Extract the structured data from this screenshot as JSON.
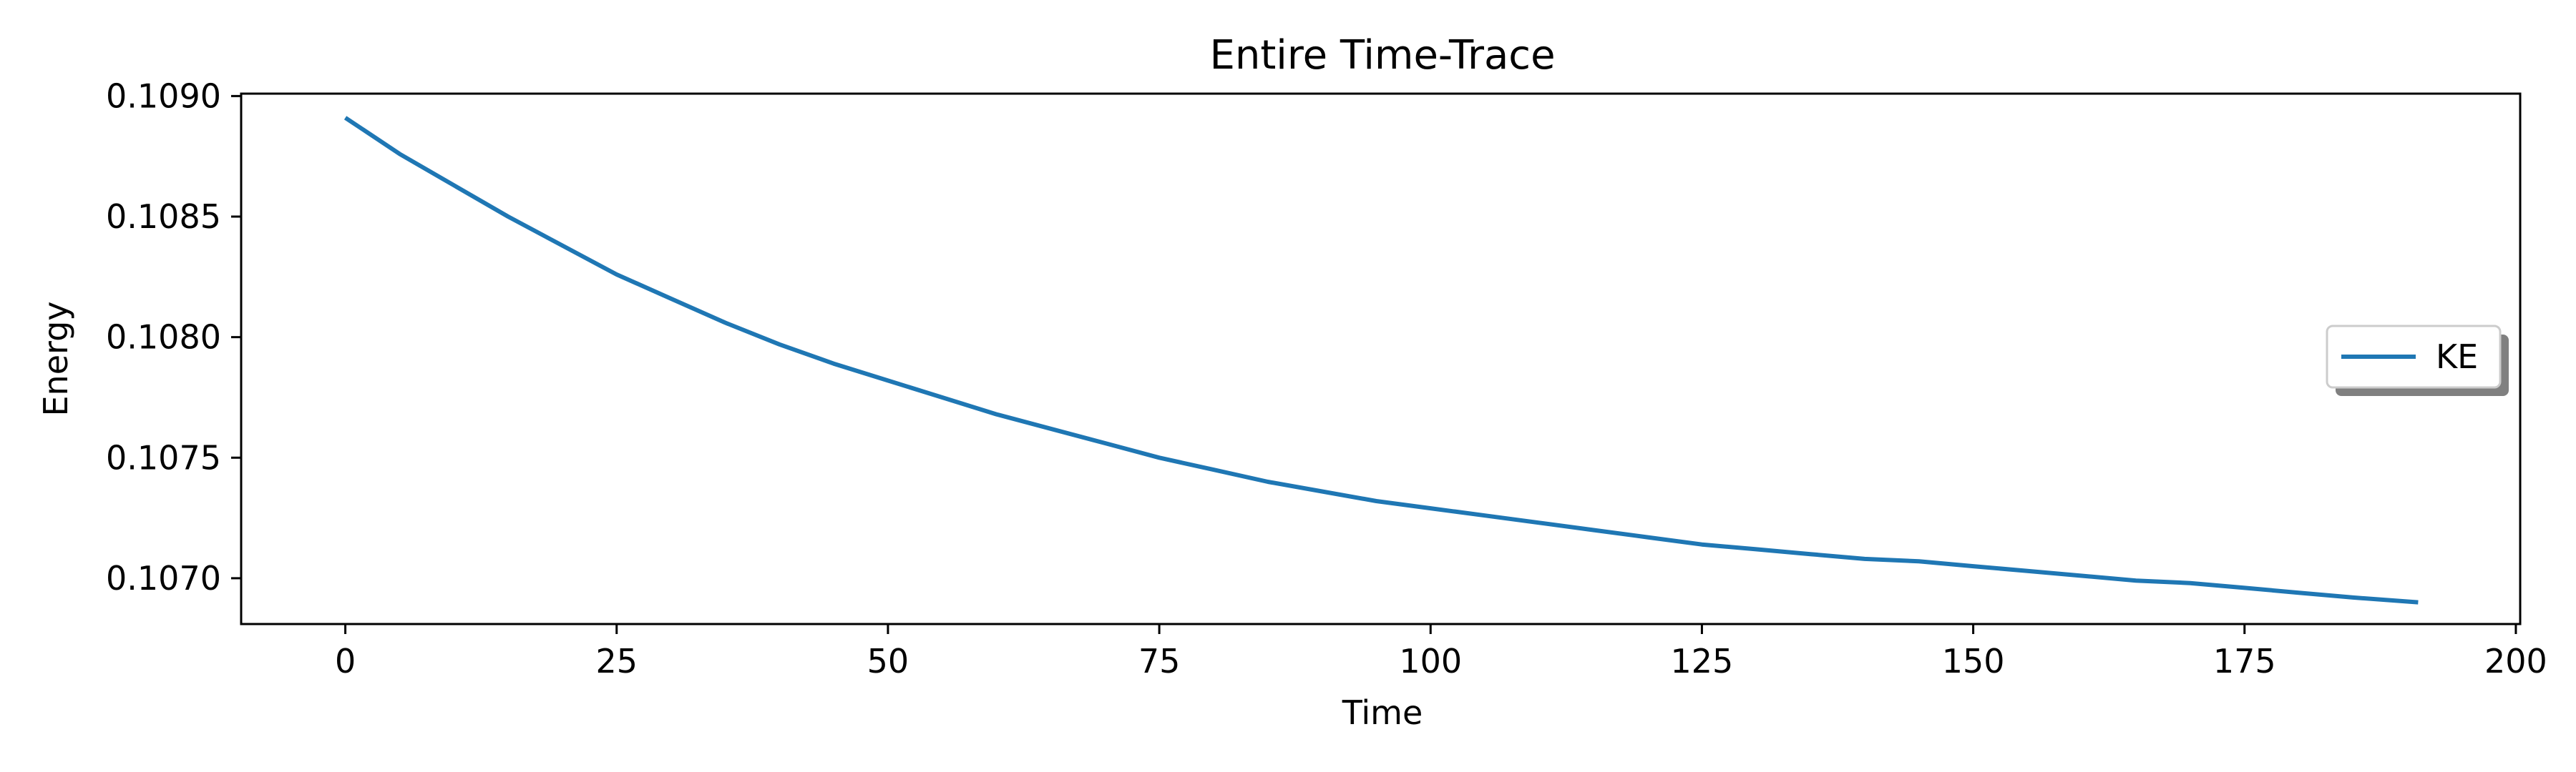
{
  "chart_data": {
    "type": "line",
    "title": "Entire Time-Trace",
    "xlabel": "Time",
    "ylabel": "Energy",
    "xlim": [
      -9.6,
      200.4
    ],
    "ylim": [
      0.10681,
      0.10901
    ],
    "x_ticks": [
      0,
      25,
      50,
      75,
      100,
      125,
      150,
      175,
      200
    ],
    "x_tick_labels": [
      "0",
      "25",
      "50",
      "75",
      "100",
      "125",
      "150",
      "175",
      "200"
    ],
    "y_ticks": [
      0.107,
      0.1075,
      0.108,
      0.1085,
      0.109
    ],
    "y_tick_labels": [
      "0.1070",
      "0.1075",
      "0.1080",
      "0.1085",
      "0.1090"
    ],
    "grid": false,
    "legend": {
      "placement": "center-right",
      "shadow": true
    },
    "series": [
      {
        "name": "KE",
        "color": "#1f77b4",
        "x": [
          0,
          5,
          10,
          15,
          20,
          25,
          30,
          35,
          40,
          45,
          50,
          55,
          60,
          65,
          70,
          75,
          80,
          85,
          90,
          95,
          100,
          105,
          110,
          115,
          120,
          125,
          130,
          135,
          140,
          145,
          150,
          155,
          160,
          165,
          170,
          175,
          180,
          185,
          191
        ],
        "y": [
          0.10891,
          0.10876,
          0.10863,
          0.1085,
          0.10838,
          0.10826,
          0.10816,
          0.10806,
          0.10797,
          0.10789,
          0.10782,
          0.10775,
          0.10768,
          0.10762,
          0.10756,
          0.1075,
          0.10745,
          0.1074,
          0.10736,
          0.10732,
          0.10729,
          0.10726,
          0.10723,
          0.1072,
          0.10717,
          0.10714,
          0.10712,
          0.1071,
          0.10708,
          0.10707,
          0.10705,
          0.10703,
          0.10701,
          0.10699,
          0.10698,
          0.10696,
          0.10694,
          0.10692,
          0.1069
        ]
      }
    ]
  }
}
